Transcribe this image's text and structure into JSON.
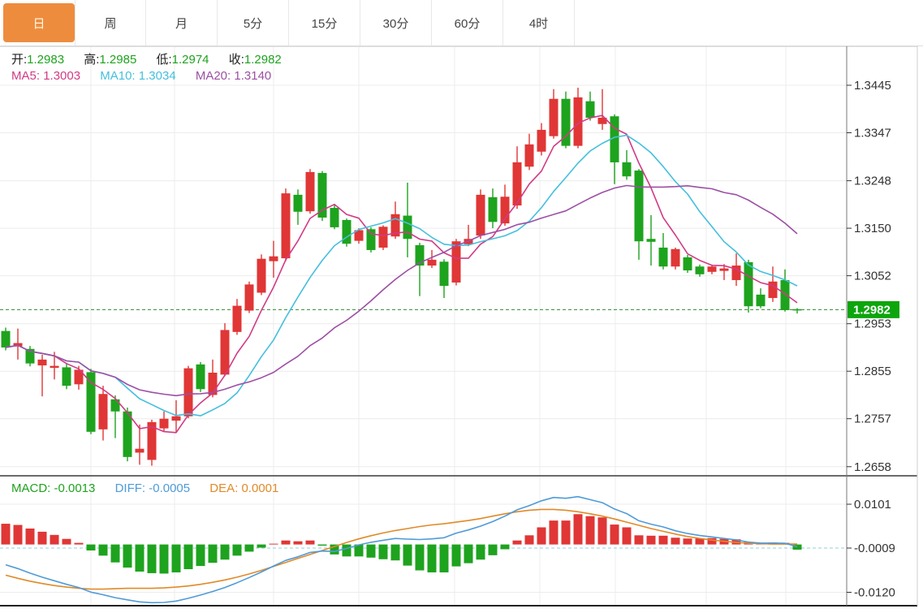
{
  "tabs": {
    "items": [
      {
        "label": "日",
        "active": true
      },
      {
        "label": "周",
        "active": false
      },
      {
        "label": "月",
        "active": false
      },
      {
        "label": "5分",
        "active": false
      },
      {
        "label": "15分",
        "active": false
      },
      {
        "label": "30分",
        "active": false
      },
      {
        "label": "60分",
        "active": false
      },
      {
        "label": "4时",
        "active": false
      }
    ]
  },
  "readout": {
    "open_label": "开:",
    "open": "1.2983",
    "high_label": "高:",
    "high": "1.2985",
    "low_label": "低:",
    "low": "1.2974",
    "close_label": "收:",
    "close": "1.2982",
    "ma5_label": "MA5:",
    "ma5": "1.3003",
    "ma10_label": "MA10:",
    "ma10": "1.3034",
    "ma20_label": "MA20:",
    "ma20": "1.3140",
    "macd_label": "MACD:",
    "macd": "-0.0013",
    "diff_label": "DIFF:",
    "diff": "-0.0005",
    "dea_label": "DEA:",
    "dea": "0.0001"
  },
  "colors": {
    "up": "#e03636",
    "down": "#1ea31e",
    "ma5": "#d13a85",
    "ma10": "#44bfdd",
    "ma20": "#9c4fa5",
    "diff": "#4f9bd8",
    "dea": "#e08a28",
    "badge": "#0da50d",
    "price_line": "#2e8b2e",
    "zero_line": "#8fd0d8",
    "grid": "#ececec",
    "axis": "#777777",
    "frame": "#cccccc",
    "divider": "#3a3a3a",
    "label": "#333333",
    "value_green": "#1ea31e",
    "tab_accent": "#ee8c3e"
  },
  "chart_data": {
    "type": "candlestick",
    "title": "",
    "price_axis_ticks": [
      1.3445,
      1.3347,
      1.3248,
      1.315,
      1.3052,
      1.2953,
      1.2855,
      1.2757,
      1.2658
    ],
    "macd_axis_ticks": [
      0.0101,
      -0.0009,
      -0.012
    ],
    "current_price": 1.2982,
    "current_price_label": "1.2982",
    "ma_periods": [
      5,
      10,
      20
    ],
    "x_gridlines": [
      112,
      215,
      337,
      442,
      560,
      665,
      758,
      870,
      968
    ],
    "candles": [
      [
        1.2938,
        1.2945,
        1.2898,
        1.2904
      ],
      [
        1.2906,
        1.2943,
        1.2879,
        1.2913
      ],
      [
        1.2901,
        1.2907,
        1.2865,
        1.2871
      ],
      [
        1.2867,
        1.2889,
        1.2803,
        1.2879
      ],
      [
        1.2862,
        1.2895,
        1.2838,
        1.2866
      ],
      [
        1.2863,
        1.287,
        1.2818,
        1.2825
      ],
      [
        1.2828,
        1.2866,
        1.2817,
        1.2858
      ],
      [
        1.2853,
        1.286,
        1.2725,
        1.273
      ],
      [
        1.2735,
        1.2825,
        1.2712,
        1.2808
      ],
      [
        1.2797,
        1.2805,
        1.2717,
        1.2772
      ],
      [
        1.2772,
        1.278,
        1.2669,
        1.2678
      ],
      [
        1.2687,
        1.2745,
        1.2662,
        1.2695
      ],
      [
        1.2672,
        1.2755,
        1.266,
        1.275
      ],
      [
        1.2737,
        1.2772,
        1.273,
        1.2757
      ],
      [
        1.2753,
        1.2795,
        1.273,
        1.2762
      ],
      [
        1.2762,
        1.2866,
        1.2758,
        1.2861
      ],
      [
        1.2869,
        1.2874,
        1.2812,
        1.2818
      ],
      [
        1.2806,
        1.2879,
        1.2801,
        1.2852
      ],
      [
        1.2848,
        1.2954,
        1.2845,
        1.294
      ],
      [
        1.2936,
        1.3004,
        1.293,
        1.299
      ],
      [
        1.298,
        1.304,
        1.2975,
        1.3034
      ],
      [
        1.3017,
        1.3096,
        1.3012,
        1.3087
      ],
      [
        1.3082,
        1.3124,
        1.3048,
        1.3092
      ],
      [
        1.3088,
        1.3232,
        1.3082,
        1.3222
      ],
      [
        1.3219,
        1.323,
        1.3157,
        1.3184
      ],
      [
        1.3185,
        1.3272,
        1.318,
        1.3266
      ],
      [
        1.3264,
        1.3268,
        1.3165,
        1.3172
      ],
      [
        1.3192,
        1.32,
        1.3148,
        1.3152
      ],
      [
        1.3167,
        1.317,
        1.3112,
        1.3118
      ],
      [
        1.3124,
        1.315,
        1.3118,
        1.3146
      ],
      [
        1.3148,
        1.3152,
        1.31,
        1.3105
      ],
      [
        1.311,
        1.3156,
        1.3105,
        1.3153
      ],
      [
        1.3133,
        1.3205,
        1.3128,
        1.3179
      ],
      [
        1.3176,
        1.3244,
        1.309,
        1.3128
      ],
      [
        1.3115,
        1.312,
        1.301,
        1.3073
      ],
      [
        1.3073,
        1.3105,
        1.3068,
        1.3085
      ],
      [
        1.3081,
        1.3086,
        1.3006,
        1.3031
      ],
      [
        1.3038,
        1.3128,
        1.3032,
        1.3123
      ],
      [
        1.3117,
        1.3157,
        1.3113,
        1.3128
      ],
      [
        1.3135,
        1.323,
        1.3128,
        1.3219
      ],
      [
        1.3214,
        1.3232,
        1.315,
        1.3163
      ],
      [
        1.316,
        1.324,
        1.3155,
        1.3215
      ],
      [
        1.3197,
        1.3319,
        1.319,
        1.3286
      ],
      [
        1.3277,
        1.3345,
        1.327,
        1.3323
      ],
      [
        1.3308,
        1.3367,
        1.33,
        1.3353
      ],
      [
        1.334,
        1.3437,
        1.3335,
        1.3417
      ],
      [
        1.3417,
        1.3432,
        1.3315,
        1.332
      ],
      [
        1.332,
        1.344,
        1.3315,
        1.342
      ],
      [
        1.3412,
        1.3432,
        1.3372,
        1.3378
      ],
      [
        1.3365,
        1.3437,
        1.3353,
        1.3378
      ],
      [
        1.3381,
        1.3385,
        1.3241,
        1.3286
      ],
      [
        1.3286,
        1.3311,
        1.325,
        1.3257
      ],
      [
        1.3269,
        1.3272,
        1.3085,
        1.3123
      ],
      [
        1.3128,
        1.3177,
        1.3073,
        1.3122
      ],
      [
        1.311,
        1.314,
        1.3065,
        1.3071
      ],
      [
        1.3071,
        1.311,
        1.3065,
        1.3107
      ],
      [
        1.309,
        1.3095,
        1.3058,
        1.3063
      ],
      [
        1.3071,
        1.3075,
        1.305,
        1.3055
      ],
      [
        1.306,
        1.3075,
        1.3055,
        1.3071
      ],
      [
        1.3062,
        1.3076,
        1.3043,
        1.3067
      ],
      [
        1.3043,
        1.3098,
        1.3031,
        1.3073
      ],
      [
        1.308,
        1.3085,
        1.2976,
        1.2989
      ],
      [
        1.3013,
        1.3026,
        1.2985,
        1.2989
      ],
      [
        1.3006,
        1.3071,
        1.2998,
        1.304
      ],
      [
        1.3043,
        1.3065,
        1.2978,
        1.2981
      ],
      [
        1.2983,
        1.2985,
        1.2974,
        1.2982
      ]
    ],
    "macd_histogram": [
      0.0052,
      0.0049,
      0.004,
      0.0032,
      0.0024,
      0.0014,
      0.0004,
      -0.0015,
      -0.0028,
      -0.0045,
      -0.0058,
      -0.0068,
      -0.0072,
      -0.0073,
      -0.007,
      -0.0062,
      -0.0054,
      -0.0046,
      -0.0038,
      -0.0028,
      -0.0018,
      -0.0008,
      0.0002,
      0.001,
      0.0008,
      0.001,
      -0.0003,
      -0.0025,
      -0.003,
      -0.003,
      -0.0033,
      -0.0037,
      -0.004,
      -0.0053,
      -0.0065,
      -0.007,
      -0.007,
      -0.0055,
      -0.0047,
      -0.0038,
      -0.0027,
      -0.0012,
      0.001,
      0.0023,
      0.0043,
      0.006,
      0.006,
      0.0076,
      0.0071,
      0.0068,
      0.005,
      0.0043,
      0.0023,
      0.0022,
      0.0022,
      0.0017,
      0.0015,
      0.0015,
      0.0016,
      0.0014,
      0.0013,
      0.0006,
      0.0003,
      0.0005,
      0.0004,
      -0.0013
    ],
    "dea": [
      -0.0077,
      -0.0085,
      -0.0092,
      -0.0098,
      -0.0103,
      -0.0107,
      -0.011,
      -0.0112,
      -0.0112,
      -0.0111,
      -0.011,
      -0.011,
      -0.011,
      -0.0109,
      -0.0107,
      -0.0104,
      -0.01,
      -0.0095,
      -0.0089,
      -0.0082,
      -0.0074,
      -0.0065,
      -0.0055,
      -0.0045,
      -0.0035,
      -0.0025,
      -0.0015,
      -0.0005,
      0.0005,
      0.0014,
      0.0022,
      0.0029,
      0.0035,
      0.004,
      0.0045,
      0.0049,
      0.0052,
      0.0056,
      0.006,
      0.0065,
      0.0071,
      0.0077,
      0.0082,
      0.0086,
      0.0088,
      0.0088,
      0.0086,
      0.0082,
      0.0077,
      0.0071,
      0.0064,
      0.0056,
      0.0048,
      0.004,
      0.0033,
      0.0026,
      0.002,
      0.0015,
      0.0011,
      0.0008,
      0.0005,
      0.0003,
      0.0002,
      0.0001,
      0.0001,
      0.0001
    ]
  }
}
